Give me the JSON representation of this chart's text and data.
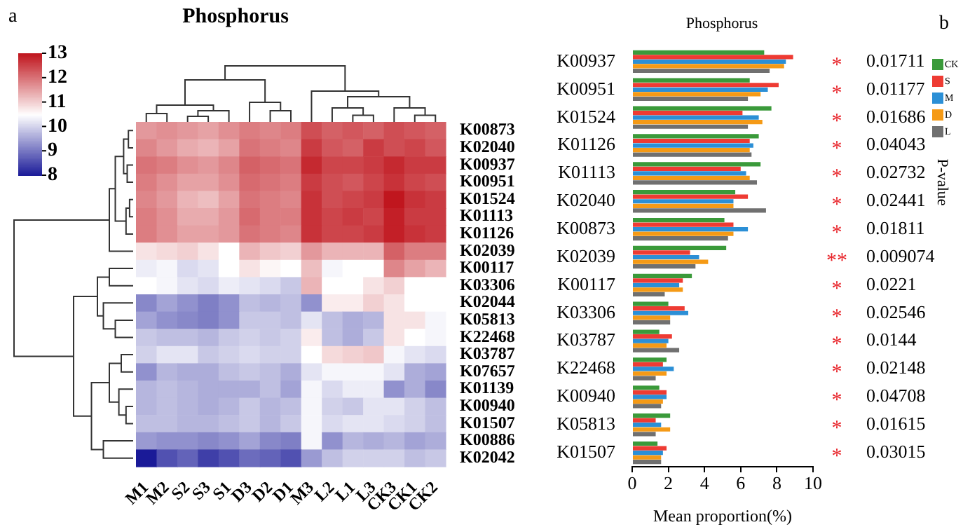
{
  "chart_data": [
    {
      "type": "heatmap",
      "title": "Phosphorus",
      "annotations": [
        "a"
      ],
      "categories": [
        "M1",
        "M2",
        "S2",
        "S3",
        "S1",
        "D3",
        "D2",
        "D1",
        "M3",
        "L2",
        "L1",
        "L3",
        "CK3",
        "CK1",
        "CK2"
      ],
      "y_categories": [
        "K00873",
        "K02040",
        "K00937",
        "K00951",
        "K01524",
        "K01113",
        "K01126",
        "K02039",
        "K00117",
        "K03306",
        "K02044",
        "K05813",
        "K22468",
        "K03787",
        "K07657",
        "K01139",
        "K00940",
        "K01507",
        "K00886",
        "K02042"
      ],
      "cells": [
        [
          11.6,
          11.7,
          11.6,
          11.5,
          11.7,
          11.9,
          11.8,
          11.9,
          12.4,
          12.2,
          12.3,
          12.2,
          12.4,
          12.3,
          12.2
        ],
        [
          11.8,
          11.6,
          11.4,
          11.3,
          11.5,
          12.0,
          11.9,
          11.8,
          12.6,
          12.3,
          12.2,
          12.6,
          12.4,
          12.5,
          12.3
        ],
        [
          12.0,
          11.9,
          11.7,
          11.6,
          11.8,
          12.2,
          12.1,
          12.0,
          12.8,
          12.5,
          12.5,
          12.6,
          12.8,
          12.6,
          12.6
        ],
        [
          11.9,
          11.7,
          11.5,
          11.5,
          11.7,
          12.1,
          12.0,
          11.9,
          12.6,
          12.4,
          12.3,
          12.5,
          12.7,
          12.5,
          12.4
        ],
        [
          11.8,
          11.6,
          11.3,
          11.2,
          11.5,
          12.0,
          11.9,
          11.8,
          12.7,
          12.4,
          12.5,
          12.6,
          13.0,
          12.7,
          12.6
        ],
        [
          11.9,
          11.7,
          11.4,
          11.4,
          11.6,
          12.1,
          11.9,
          11.9,
          12.7,
          12.5,
          12.6,
          12.5,
          12.9,
          12.6,
          12.6
        ],
        [
          11.9,
          11.7,
          11.5,
          11.5,
          11.6,
          12.0,
          11.9,
          11.8,
          12.7,
          12.5,
          12.5,
          12.6,
          12.9,
          12.7,
          12.6
        ],
        [
          10.8,
          10.9,
          11.0,
          10.8,
          10.5,
          11.3,
          11.1,
          11.0,
          11.6,
          11.3,
          11.3,
          11.3,
          12.2,
          11.9,
          11.9
        ],
        [
          10.3,
          10.4,
          10.1,
          10.2,
          10.5,
          10.8,
          10.6,
          10.5,
          11.2,
          10.4,
          10.5,
          10.5,
          11.8,
          11.5,
          11.3
        ],
        [
          10.5,
          10.4,
          10.2,
          10.1,
          10.3,
          10.2,
          10.1,
          9.9,
          11.3,
          10.5,
          10.5,
          10.8,
          11.0,
          10.5,
          10.5
        ],
        [
          9.2,
          9.5,
          9.3,
          9.1,
          9.3,
          9.8,
          9.7,
          9.8,
          9.3,
          10.7,
          10.7,
          11.0,
          10.8,
          10.5,
          10.5
        ],
        [
          9.5,
          9.3,
          9.2,
          9.1,
          9.3,
          9.9,
          9.9,
          9.8,
          10.2,
          9.8,
          9.6,
          9.7,
          10.8,
          10.8,
          10.4
        ],
        [
          9.9,
          9.8,
          9.8,
          9.7,
          9.9,
          10.0,
          9.9,
          10.0,
          10.7,
          9.8,
          9.6,
          9.9,
          10.8,
          10.5,
          10.4
        ],
        [
          10.0,
          10.2,
          10.2,
          9.9,
          10.0,
          10.1,
          10.0,
          10.0,
          10.5,
          10.9,
          11.0,
          11.1,
          10.4,
          10.2,
          10.1
        ],
        [
          9.3,
          9.7,
          9.6,
          9.6,
          9.8,
          9.9,
          9.8,
          9.6,
          10.2,
          10.4,
          10.4,
          10.4,
          10.2,
          9.6,
          9.5
        ],
        [
          9.7,
          9.8,
          9.7,
          9.6,
          9.6,
          9.6,
          9.8,
          9.5,
          10.4,
          10.1,
          10.3,
          10.3,
          9.3,
          9.6,
          9.2
        ],
        [
          9.7,
          9.8,
          9.7,
          9.6,
          9.7,
          9.9,
          9.7,
          9.8,
          10.4,
          10.0,
          9.9,
          10.2,
          10.2,
          10.0,
          9.8
        ],
        [
          9.8,
          9.8,
          9.7,
          9.7,
          9.8,
          9.9,
          9.7,
          9.9,
          10.4,
          10.1,
          10.2,
          10.2,
          10.1,
          10.0,
          9.8
        ],
        [
          9.4,
          9.3,
          9.3,
          9.2,
          9.3,
          9.5,
          9.2,
          9.1,
          10.4,
          9.3,
          9.7,
          9.6,
          9.7,
          9.5,
          9.6
        ],
        [
          8.0,
          8.6,
          8.8,
          8.4,
          8.6,
          8.9,
          8.8,
          8.6,
          9.4,
          9.8,
          10.0,
          10.0,
          10.0,
          9.8,
          9.9
        ]
      ],
      "clim": [
        8,
        13
      ],
      "cticks": [
        8,
        9,
        10,
        11,
        12,
        13
      ]
    },
    {
      "type": "bar",
      "orientation": "horizontal",
      "title": "Phosphorus",
      "xlabel": "Mean proportion(%)",
      "y2label": "P-value",
      "legend": "right",
      "categories": [
        "K00937",
        "K00951",
        "K01524",
        "K01126",
        "K01113",
        "K02040",
        "K00873",
        "K02039",
        "K00117",
        "K03306",
        "K03787",
        "K22468",
        "K00940",
        "K05813",
        "K01507"
      ],
      "series": [
        {
          "name": "CK",
          "color": "#3a9a3a",
          "values": [
            7.3,
            6.5,
            7.7,
            7.0,
            7.1,
            5.7,
            5.1,
            5.2,
            3.3,
            2.0,
            1.5,
            1.9,
            1.5,
            2.1,
            1.4
          ]
        },
        {
          "name": "S",
          "color": "#ee3b33",
          "values": [
            8.9,
            8.1,
            6.1,
            6.5,
            6.0,
            6.4,
            5.6,
            3.2,
            2.8,
            2.9,
            2.2,
            1.7,
            1.9,
            1.3,
            1.9
          ]
        },
        {
          "name": "M",
          "color": "#2b8fd6",
          "values": [
            8.5,
            7.5,
            7.0,
            6.7,
            6.3,
            5.6,
            6.4,
            3.7,
            2.6,
            3.1,
            2.0,
            2.3,
            1.9,
            1.6,
            1.7
          ]
        },
        {
          "name": "D",
          "color": "#f59a16",
          "values": [
            8.4,
            7.1,
            7.2,
            6.5,
            6.5,
            5.6,
            5.6,
            4.2,
            2.8,
            2.1,
            1.9,
            1.9,
            1.7,
            2.1,
            1.6
          ]
        },
        {
          "name": "L",
          "color": "#707070",
          "values": [
            7.6,
            6.4,
            6.4,
            6.6,
            6.9,
            7.4,
            5.3,
            3.5,
            1.8,
            2.1,
            2.6,
            1.3,
            1.6,
            1.3,
            1.6
          ]
        }
      ],
      "xlim": [
        0,
        10
      ],
      "xticks": [
        0,
        2,
        4,
        6,
        8,
        10
      ],
      "annotations": [
        "b",
        "*",
        "0.01711",
        "*",
        "0.01177",
        "*",
        "0.01686",
        "*",
        "0.04043",
        "*",
        "0.02732",
        "*",
        "0.02441",
        "*",
        "0.01811",
        "**",
        "0.009074",
        "*",
        "0.0221",
        "*",
        "0.02546",
        "*",
        "0.0144",
        "*",
        "0.02148",
        "*",
        "0.04708",
        "*",
        "0.01615",
        "*",
        "0.03015"
      ]
    }
  ]
}
